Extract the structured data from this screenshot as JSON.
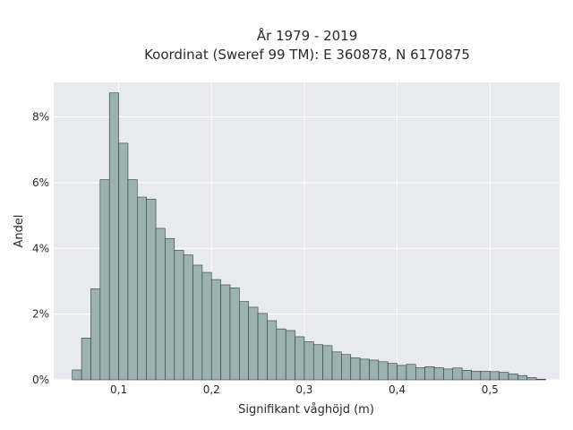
{
  "chart_data": {
    "type": "bar",
    "title": "År 1979 - 2019",
    "subtitle": "Koordinat (Sweref 99 TM): E 360878, N 6170875",
    "xlabel": "Signifikant våghöjd (m)",
    "ylabel": "Andel",
    "xlim": [
      0.03,
      0.575
    ],
    "ylim": [
      0,
      0.0905
    ],
    "x_ticks": [
      0.1,
      0.2,
      0.3,
      0.4,
      0.5
    ],
    "x_tick_labels": [
      "0,1",
      "0,2",
      "0,3",
      "0,4",
      "0,5"
    ],
    "y_ticks": [
      0,
      0.02,
      0.04,
      0.06,
      0.08
    ],
    "y_tick_labels": [
      "0%",
      "2%",
      "4%",
      "6%",
      "8%"
    ],
    "grid": true,
    "bin_edges": [
      0.05,
      0.06,
      0.07,
      0.08,
      0.09,
      0.1,
      0.11,
      0.12,
      0.13,
      0.14,
      0.15,
      0.16,
      0.17,
      0.18,
      0.19,
      0.2,
      0.21,
      0.22,
      0.23,
      0.24,
      0.25,
      0.26,
      0.27,
      0.28,
      0.29,
      0.3,
      0.31,
      0.32,
      0.33,
      0.34,
      0.35,
      0.36,
      0.37,
      0.38,
      0.39,
      0.4,
      0.41,
      0.42,
      0.43,
      0.44,
      0.45,
      0.46,
      0.47,
      0.48,
      0.49,
      0.5,
      0.51,
      0.52,
      0.53,
      0.54,
      0.55,
      0.56
    ],
    "values": [
      0.003,
      0.0127,
      0.0277,
      0.0609,
      0.0873,
      0.072,
      0.0609,
      0.0556,
      0.055,
      0.0461,
      0.043,
      0.0394,
      0.038,
      0.0349,
      0.0327,
      0.0305,
      0.0289,
      0.028,
      0.0238,
      0.0221,
      0.0202,
      0.018,
      0.0155,
      0.015,
      0.0131,
      0.0116,
      0.0107,
      0.0104,
      0.0085,
      0.0077,
      0.0067,
      0.0063,
      0.006,
      0.0055,
      0.005,
      0.0044,
      0.0047,
      0.0037,
      0.004,
      0.0037,
      0.0033,
      0.0036,
      0.0029,
      0.0026,
      0.0026,
      0.0025,
      0.0023,
      0.0018,
      0.0013,
      0.0007,
      0.0002
    ],
    "colors": {
      "plot_background": "#e8e9f1",
      "grid": "#ffffff",
      "bar_fill": "#9cb2b2",
      "bar_stroke": "#2e3b3b"
    }
  }
}
